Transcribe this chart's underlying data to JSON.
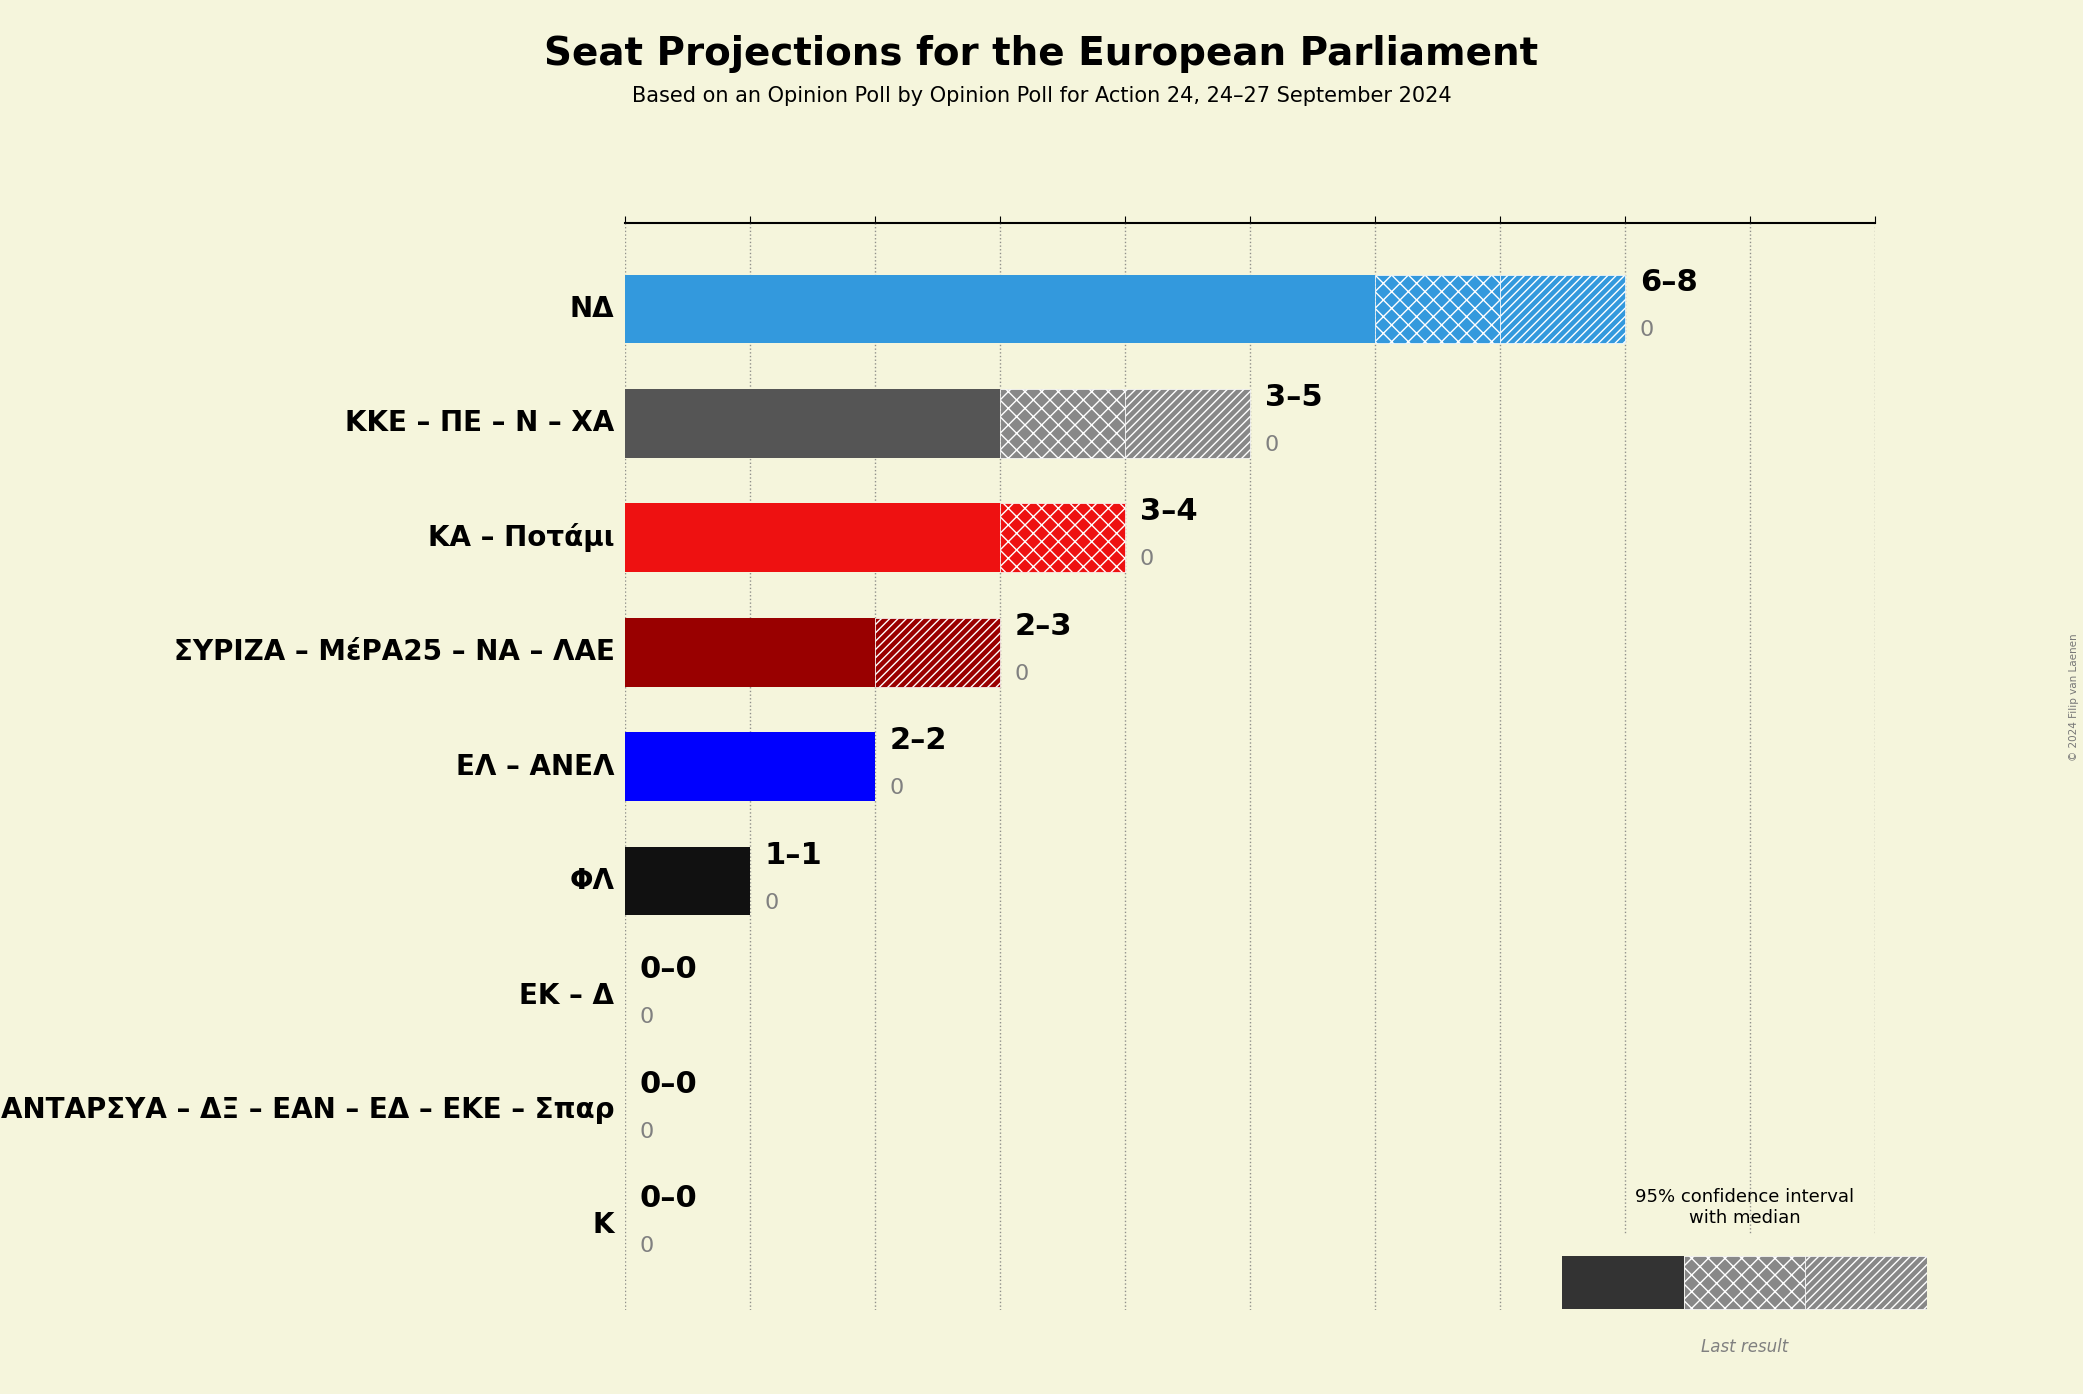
{
  "title": "Seat Projections for the European Parliament",
  "subtitle": "Based on an Opinion Poll by Opinion Poll for Action 24, 24–27 September 2024",
  "copyright": "© 2024 Filip van Laenen",
  "background_color": "#F5F5DC",
  "parties": [
    "NΔ",
    "ΚΚΕ – ΠΕ – Ν – ΧΑ",
    "ΚΑ – Ποτάμι",
    "ΣΥΡΙΖΑ – ΜέΡΑ25 – ΝΑ – ΛΑΕ",
    "ΕΛ – ΑΝΕΛ",
    "ΦΛ",
    "ΕΚ – Δ",
    "ΑΝΤΑΡΣΥΑ – ΔΞ – ΕΑΝ – ΕΔ – ΕΚΕ – Σπαρ",
    "Κ"
  ],
  "median_seats": [
    6,
    3,
    3,
    2,
    2,
    1,
    0,
    0,
    0
  ],
  "ci_low": [
    6,
    3,
    3,
    2,
    2,
    1,
    0,
    0,
    0
  ],
  "ci_high": [
    8,
    5,
    4,
    3,
    2,
    1,
    0,
    0,
    0
  ],
  "last_result": [
    0,
    0,
    0,
    0,
    0,
    0,
    0,
    0,
    0
  ],
  "range_labels": [
    "6–8",
    "3–5",
    "3–4",
    "2–3",
    "2–2",
    "1–1",
    "0–0",
    "0–0",
    "0–0"
  ],
  "bar_colors": [
    "#3399DD",
    "#555555",
    "#EE1111",
    "#990000",
    "#0000FF",
    "#111111",
    "#111111",
    "#111111",
    "#111111"
  ],
  "hatch_face_colors": [
    "#3399DD",
    "#888888",
    "#EE1111",
    "#990000",
    "#0000FF",
    "#444444",
    "#444444",
    "#444444",
    "#444444"
  ],
  "xlim_max": 10,
  "title_fontsize": 28,
  "subtitle_fontsize": 15,
  "party_label_fontsize": 20,
  "annotation_fontsize": 22,
  "last_result_fontsize": 16,
  "bar_height": 0.6,
  "legend_text": "95% confidence interval\nwith median",
  "legend_last": "Last result"
}
